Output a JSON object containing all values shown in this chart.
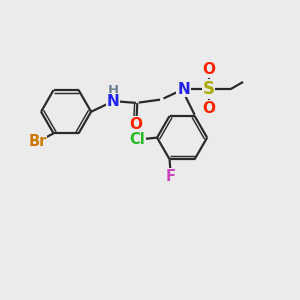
{
  "bg_color": "#ebebeb",
  "bond_color": "#2a2a2a",
  "bond_width": 1.6,
  "atom_colors": {
    "Br": "#cc7700",
    "N": "#2222ee",
    "H": "#708090",
    "O": "#ff2200",
    "S": "#aaaa00",
    "Cl": "#22bb22",
    "F": "#cc44bb"
  },
  "font_size": 10.5
}
